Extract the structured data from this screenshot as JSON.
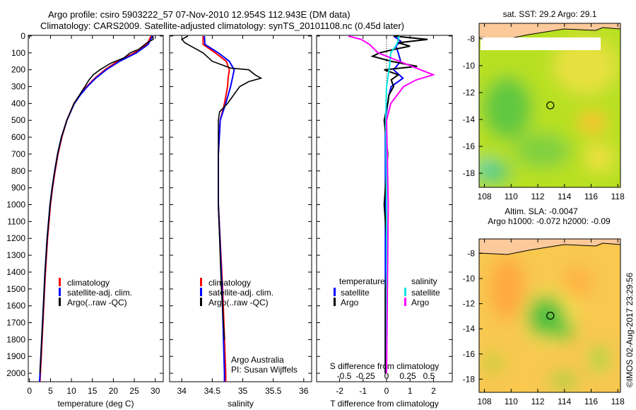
{
  "title_line1": "Argo profile: csiro 5903222_57 07-Nov-2010 12.954S 112.943E (DM data)",
  "title_line2": "Climatology: CARS2009. Satellite-adjusted climatology: synTS_20101108.nc (0.45d later)",
  "credit": "©IMOS 02-Aug-2017 23:29:56",
  "colors": {
    "climatology": "#ff0000",
    "satellite": "#0000ff",
    "argo": "#000000",
    "s_satellite": "#00e5e5",
    "s_argo": "#ff00ff"
  },
  "chart_data": [
    {
      "type": "line",
      "name": "temperature",
      "xlabel": "temperature (deg C)",
      "xlim": [
        -0.3,
        31.9
      ],
      "ylim": [
        -4,
        2050
      ],
      "xticks": [
        "0",
        "5",
        "10",
        "15",
        "20",
        "25",
        "30"
      ],
      "xtick_values": [
        0,
        5,
        10,
        15,
        20,
        25,
        30
      ],
      "yticks": [
        "0",
        "100",
        "200",
        "300",
        "400",
        "500",
        "600",
        "700",
        "800",
        "900",
        "1000",
        "1100",
        "1200",
        "1300",
        "1400",
        "1500",
        "1600",
        "1700",
        "1800",
        "1900",
        "2000"
      ],
      "legend": [
        "climatology",
        "satellite-adj. clim.",
        "Argo(..raw -QC)"
      ],
      "series": [
        {
          "name": "climatology",
          "color": "#ff0000",
          "depth": [
            0,
            50,
            100,
            150,
            200,
            250,
            300,
            350,
            400,
            500,
            600,
            700,
            800,
            900,
            1000,
            1200,
            1400,
            1600,
            1800,
            2000,
            2050
          ],
          "values": [
            29,
            28,
            25,
            21,
            18,
            15.6,
            13.6,
            12,
            10.6,
            8.9,
            7.7,
            6.8,
            6.1,
            5.5,
            5.0,
            4.3,
            3.8,
            3.4,
            3.0,
            2.6,
            2.5
          ]
        },
        {
          "name": "satellite-adj. clim.",
          "color": "#0000ff",
          "depth": [
            0,
            50,
            100,
            150,
            200,
            250,
            300,
            350,
            400,
            500,
            600,
            700,
            800,
            900,
            1000,
            1200,
            1400,
            1600,
            1800,
            2000,
            2050
          ],
          "values": [
            29.3,
            28.3,
            25.5,
            21.5,
            18.3,
            15.8,
            13.8,
            12.1,
            10.7,
            8.9,
            7.6,
            6.7,
            6.0,
            5.4,
            4.9,
            4.2,
            3.7,
            3.3,
            2.9,
            2.5,
            2.4
          ]
        },
        {
          "name": "Argo(..raw -QC)",
          "color": "#000000",
          "depth": [
            0,
            20,
            40,
            60,
            80,
            100,
            130,
            160,
            200,
            230,
            260,
            300,
            350,
            400,
            500,
            600,
            700,
            800,
            900,
            1000,
            1200,
            1400,
            1600,
            1800,
            2000
          ],
          "values": [
            29.4,
            29.5,
            28,
            27,
            26,
            24,
            22.5,
            19.5,
            16.8,
            15.2,
            14.2,
            13.2,
            11.9,
            10.6,
            8.9,
            7.6,
            6.7,
            6.0,
            5.4,
            4.9,
            4.2,
            3.7,
            3.3,
            2.9,
            2.5
          ]
        }
      ]
    },
    {
      "type": "line",
      "name": "salinity",
      "xlabel": "salinity",
      "xlim": [
        33.8,
        36.13
      ],
      "ylim": [
        -4,
        2050
      ],
      "xticks": [
        "34",
        "34.5",
        "35",
        "35.5",
        "36"
      ],
      "xtick_values": [
        34,
        34.5,
        35,
        35.5,
        36
      ],
      "legend": [
        "climatology",
        "satellite-adj. clim.",
        "Argo(..raw -QC)"
      ],
      "annotation": [
        "Argo Australia",
        "PI: Susan Wijffels"
      ],
      "series": [
        {
          "name": "climatology",
          "color": "#ff0000",
          "depth": [
            0,
            50,
            100,
            150,
            200,
            250,
            300,
            400,
            500,
            700,
            1000,
            1500,
            2000,
            2050
          ],
          "values": [
            34.35,
            34.35,
            34.55,
            34.73,
            34.78,
            34.76,
            34.75,
            34.7,
            34.63,
            34.6,
            34.6,
            34.67,
            34.72,
            34.72
          ]
        },
        {
          "name": "satellite-adj. clim.",
          "color": "#0000ff",
          "depth": [
            0,
            50,
            100,
            150,
            200,
            250,
            300,
            400,
            500,
            700,
            1000,
            1500,
            2000,
            2050
          ],
          "values": [
            34.37,
            34.38,
            34.6,
            34.78,
            34.86,
            34.83,
            34.8,
            34.72,
            34.63,
            34.6,
            34.6,
            34.66,
            34.7,
            34.7
          ]
        },
        {
          "name": "Argo(..raw -QC)",
          "color": "#000000",
          "depth": [
            0,
            20,
            40,
            60,
            100,
            150,
            190,
            200,
            230,
            250,
            270,
            300,
            350,
            400,
            450,
            500,
            1000,
            1500,
            1800
          ],
          "values": [
            34.1,
            34.0,
            34.05,
            34.15,
            34.35,
            34.5,
            34.8,
            35.1,
            35.2,
            35.3,
            35.1,
            34.95,
            34.85,
            34.75,
            34.62,
            34.6,
            34.6,
            34.65,
            34.7
          ]
        }
      ]
    },
    {
      "type": "line",
      "name": "difference",
      "xlabel": "T difference from climatology",
      "xlabel2": "S difference from climatology",
      "xlim": [
        -2.98,
        2.8
      ],
      "xlim_s": [
        -0.825,
        0.775
      ],
      "ylim": [
        -4,
        2050
      ],
      "xticks": [
        "-2",
        "-1",
        "0",
        "1",
        "2"
      ],
      "xtick_values": [
        -2,
        -1,
        0,
        1,
        2
      ],
      "xticks_s": [
        "-0.5",
        "-0.25",
        "0",
        "0.25",
        "0.5"
      ],
      "xtick_values_s": [
        -0.5,
        -0.25,
        0,
        0.25,
        0.5
      ],
      "legend_t_title": "temperature",
      "legend_s_title": "salinity",
      "legend_t": [
        "satellite",
        "Argo"
      ],
      "legend_s": [
        "satellite",
        "Argo"
      ],
      "series": [
        {
          "name": "T satellite",
          "axis": "t",
          "color": "#0000ff",
          "depth": [
            0,
            30,
            60,
            100,
            150,
            200,
            250,
            300,
            350,
            400,
            500,
            1000,
            1500,
            2000
          ],
          "values": [
            0.3,
            0.6,
            0.4,
            0.5,
            0.6,
            0.3,
            0.7,
            0.2,
            0.1,
            0.05,
            -0.05,
            -0.05,
            -0.05,
            -0.05
          ]
        },
        {
          "name": "T Argo",
          "axis": "t",
          "color": "#000000",
          "depth": [
            0,
            20,
            40,
            60,
            80,
            100,
            120,
            150,
            180,
            200,
            230,
            260,
            300,
            350,
            400,
            500,
            700,
            1000,
            1300,
            1500,
            2000
          ],
          "values": [
            0.3,
            1.75,
            0.5,
            1.0,
            0.3,
            -0.3,
            -0.6,
            0.2,
            1.3,
            -0.1,
            0.5,
            0.2,
            0.3,
            0.1,
            0.05,
            -0.1,
            0.05,
            -0.1,
            0.05,
            -0.05,
            -0.05
          ]
        },
        {
          "name": "S satellite",
          "axis": "s",
          "color": "#00e5e5",
          "depth": [
            0,
            50,
            100,
            200,
            300,
            500,
            1000,
            2000
          ],
          "values": [
            0.15,
            0.12,
            0.05,
            0.03,
            0.0,
            -0.01,
            0.0,
            0.0
          ]
        },
        {
          "name": "S Argo",
          "axis": "s",
          "color": "#ff00ff",
          "depth": [
            0,
            20,
            50,
            100,
            150,
            200,
            230,
            260,
            300,
            400,
            500,
            1000,
            2000
          ],
          "values": [
            -0.45,
            -0.3,
            -0.2,
            -0.1,
            0.15,
            0.4,
            0.55,
            0.35,
            0.2,
            0.05,
            0.0,
            0.02,
            0.0
          ]
        }
      ]
    },
    {
      "type": "heatmap",
      "name": "sst-map",
      "title": "sat. SST: 29.2 Argo: 29.1",
      "xlim": [
        107.6,
        118.2
      ],
      "ylim": [
        -19.05,
        -6.85
      ],
      "xticks": [
        "108",
        "110",
        "112",
        "114",
        "116",
        "118"
      ],
      "yticks": [
        "-8",
        "-10",
        "-12",
        "-14",
        "-16",
        "-18"
      ],
      "marker": [
        112.943,
        -12.954
      ]
    },
    {
      "type": "heatmap",
      "name": "sla-map",
      "title": "Altim. SLA: -0.0047",
      "subtitle": "Argo h1000: -0.072 h2000: -0.09",
      "xlim": [
        107.6,
        118.2
      ],
      "ylim": [
        -19.05,
        -6.85
      ],
      "xticks": [
        "108",
        "110",
        "112",
        "114",
        "116",
        "118"
      ],
      "yticks": [
        "-8",
        "-10",
        "-12",
        "-14",
        "-16",
        "-18"
      ],
      "marker": [
        112.943,
        -12.954
      ]
    }
  ]
}
